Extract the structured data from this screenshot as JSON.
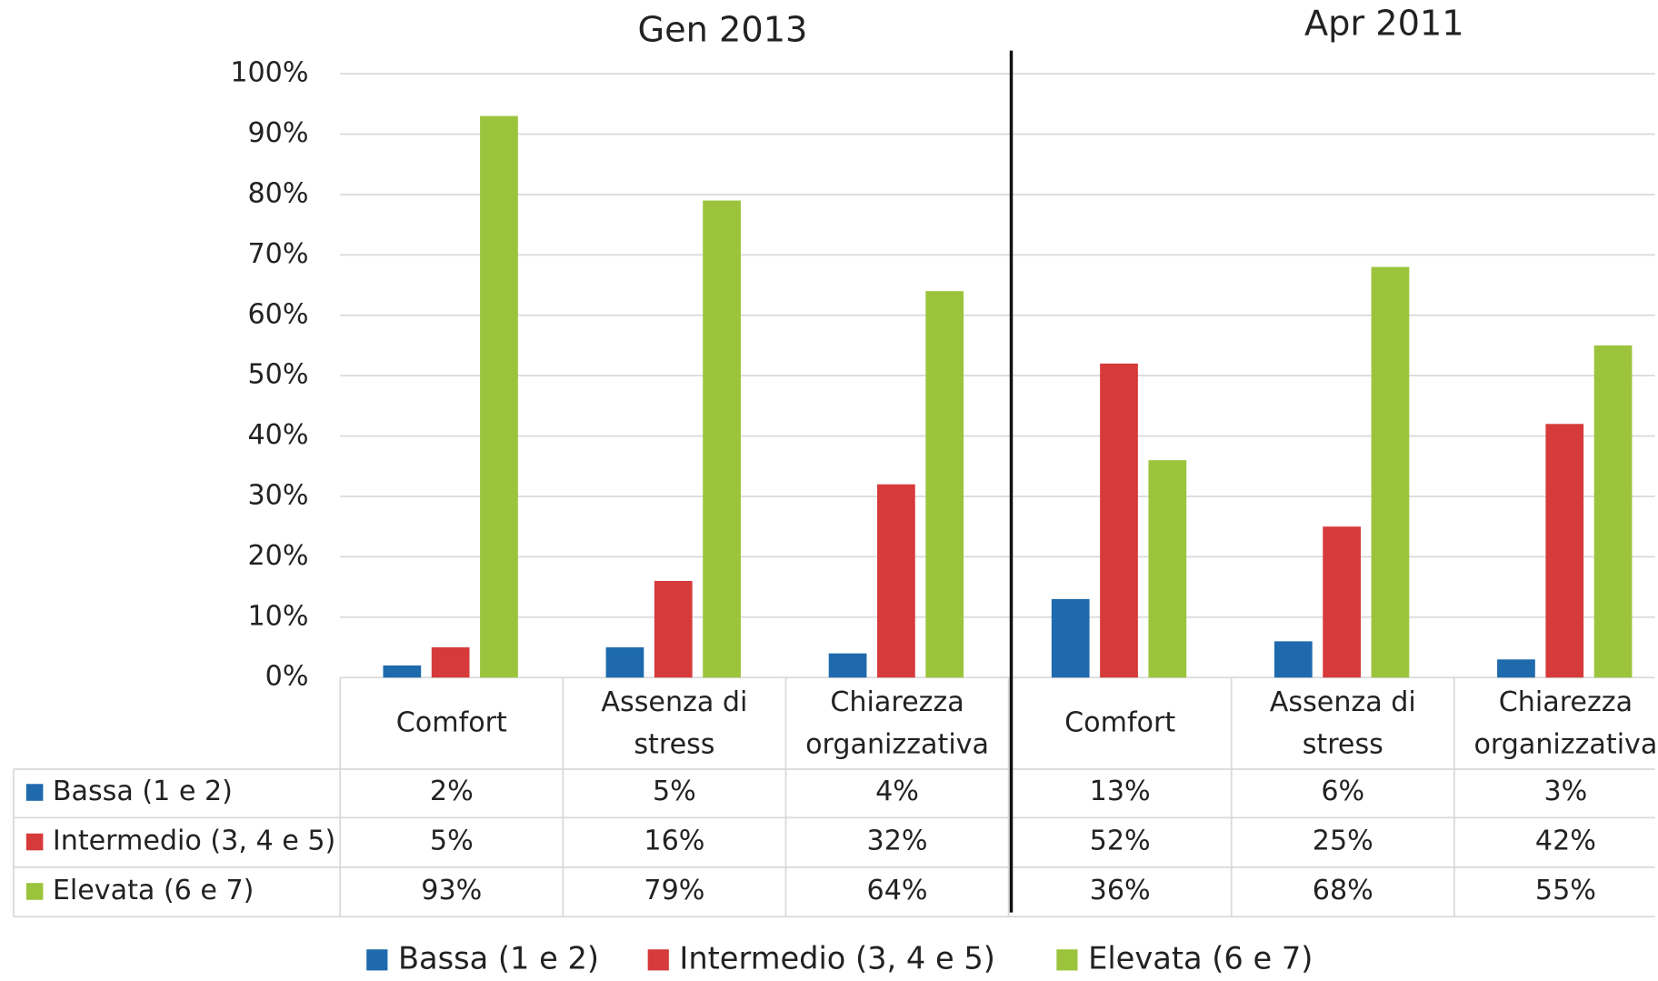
{
  "chart_data": {
    "type": "bar",
    "group_labels": [
      "Gen 2013",
      "Apr 2011"
    ],
    "categories": [
      "Comfort",
      "Assenza di stress",
      "Chiarezza organizzativa",
      "Comfort",
      "Assenza di stress",
      "Chiarezza organizzativa"
    ],
    "series": [
      {
        "name": "Bassa (1 e 2)",
        "color": "#1f6aad",
        "values": [
          2,
          5,
          4,
          13,
          6,
          3
        ],
        "value_labels": [
          "2%",
          "5%",
          "4%",
          "13%",
          "6%",
          "3%"
        ]
      },
      {
        "name": "Intermedio (3, 4 e 5)",
        "color": "#d63a3a",
        "values": [
          5,
          16,
          32,
          52,
          25,
          42
        ],
        "value_labels": [
          "5%",
          "16%",
          "32%",
          "52%",
          "25%",
          "42%"
        ]
      },
      {
        "name": "Elevata (6 e 7)",
        "color": "#9bc43c",
        "values": [
          93,
          79,
          64,
          36,
          68,
          55
        ],
        "value_labels": [
          "93%",
          "79%",
          "64%",
          "36%",
          "68%",
          "55%"
        ]
      }
    ],
    "ylim": [
      0,
      100
    ],
    "yticks": [
      {
        "value": 0,
        "label": "0%"
      },
      {
        "value": 10,
        "label": "10%"
      },
      {
        "value": 20,
        "label": "20%"
      },
      {
        "value": 30,
        "label": "30%"
      },
      {
        "value": 40,
        "label": "40%"
      },
      {
        "value": 50,
        "label": "50%"
      },
      {
        "value": 60,
        "label": "60%"
      },
      {
        "value": 70,
        "label": "70%"
      },
      {
        "value": 80,
        "label": "80%"
      },
      {
        "value": 90,
        "label": "90%"
      },
      {
        "value": 100,
        "label": "100%"
      }
    ],
    "grid": true
  }
}
